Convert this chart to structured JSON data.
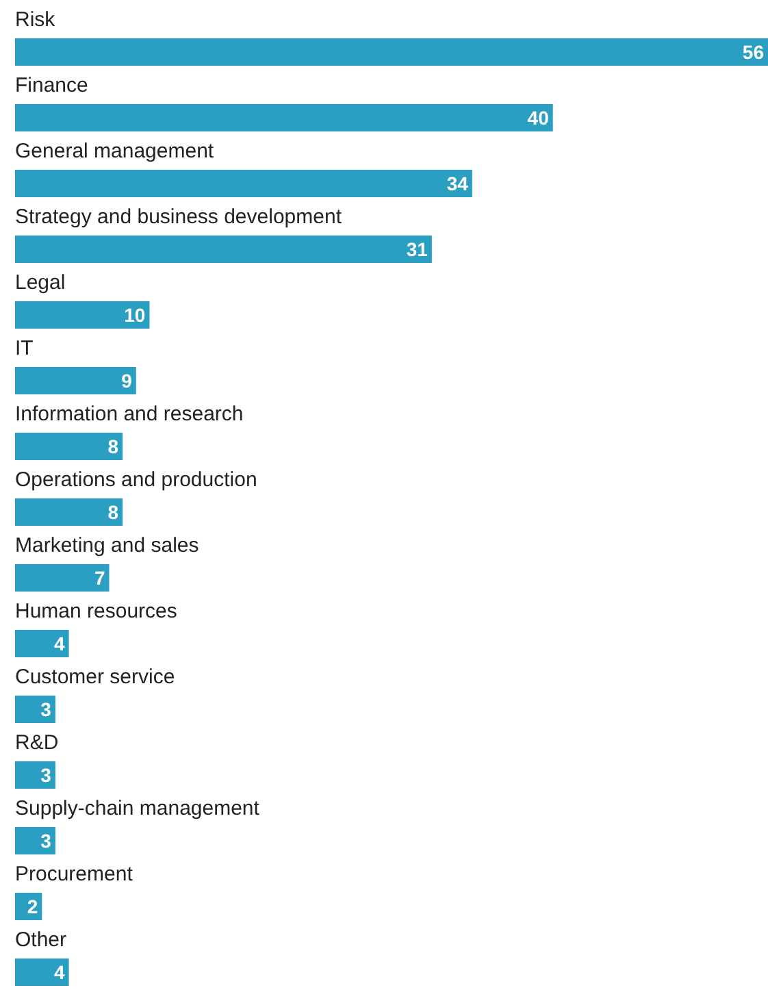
{
  "chart_data": {
    "type": "bar",
    "orientation": "horizontal",
    "categories": [
      "Risk",
      "Finance",
      "General management",
      "Strategy and business development",
      "Legal",
      "IT",
      "Information and research",
      "Operations and production",
      "Marketing and sales",
      "Human resources",
      "Customer service",
      "R&D",
      "Supply-chain management",
      "Procurement",
      "Other"
    ],
    "values": [
      56,
      40,
      34,
      31,
      10,
      9,
      8,
      8,
      7,
      4,
      3,
      3,
      3,
      2,
      4
    ],
    "color": "#2a9fc1",
    "data_labels": true
  }
}
